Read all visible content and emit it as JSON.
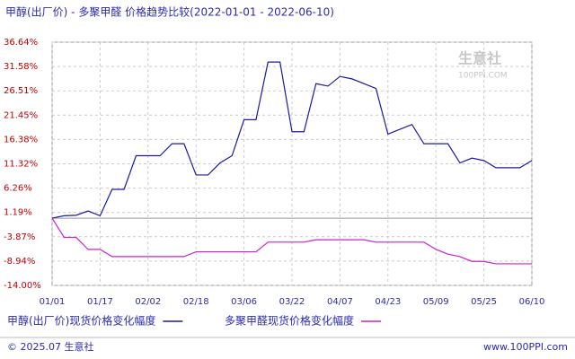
{
  "chart_data": {
    "type": "line",
    "title": "甲醇(出厂价) - 多聚甲醛 价格趋势比较(2022-01-01 - 2022-06-10)",
    "watermark": "生意社",
    "watermark_sub": "100PPI.COM",
    "footer_left": "© 2025.07 生意社",
    "footer_right": "www.100PPI.com",
    "categories": [
      "01/01",
      null,
      null,
      null,
      "01/17",
      null,
      null,
      null,
      "02/02",
      null,
      null,
      null,
      "02/18",
      null,
      null,
      null,
      "03/06",
      null,
      null,
      null,
      "03/22",
      null,
      null,
      null,
      "04/07",
      null,
      null,
      null,
      "04/23",
      null,
      null,
      null,
      "05/09",
      null,
      null,
      null,
      "05/25",
      null,
      null,
      null,
      "06/10"
    ],
    "series": [
      {
        "name": "甲醇(出厂价)现货价格变化幅度",
        "color": "#1a1aa6",
        "values": [
          0,
          0.5,
          0.6,
          1.5,
          0.5,
          6,
          6,
          13,
          13,
          13,
          15.5,
          15.5,
          9,
          9,
          11.5,
          13,
          20.5,
          20.5,
          32.5,
          32.5,
          18,
          18,
          28,
          27.5,
          29.5,
          29,
          28,
          27,
          17.5,
          18.5,
          19.5,
          15.5,
          15.5,
          15.5,
          11.5,
          12.5,
          12,
          10.5,
          10.5,
          10.5,
          12
        ]
      },
      {
        "name": "多聚甲醛现货价格变化幅度",
        "color": "#cc22cc",
        "values": [
          0,
          -4,
          -4,
          -6.5,
          -6.5,
          -8,
          -8,
          -8,
          -8,
          -8,
          -8,
          -8,
          -7,
          -7,
          -7,
          -7,
          -7,
          -7,
          -5,
          -5,
          -5,
          -5,
          -4.5,
          -4.5,
          -4.5,
          -4.5,
          -4.5,
          -5,
          -5,
          -5,
          -5,
          -5,
          -6.5,
          -7.5,
          -8,
          -9,
          -9,
          -9.5,
          -9.5,
          -9.5,
          -9.5
        ]
      }
    ],
    "ylim": [
      -14,
      36.64
    ],
    "yticks": [
      {
        "value": 36.64,
        "label": "36.64%"
      },
      {
        "value": 31.58,
        "label": "31.58%"
      },
      {
        "value": 26.51,
        "label": "26.51%"
      },
      {
        "value": 21.45,
        "label": "21.45%"
      },
      {
        "value": 16.38,
        "label": "16.38%"
      },
      {
        "value": 11.32,
        "label": "11.32%"
      },
      {
        "value": 6.26,
        "label": "6.26%"
      },
      {
        "value": 1.19,
        "label": "1.19%"
      },
      {
        "value": -3.87,
        "label": "-3.87%"
      },
      {
        "value": -8.94,
        "label": "-8.94%"
      },
      {
        "value": -14,
        "label": "-14.00%"
      }
    ],
    "grid": true
  }
}
